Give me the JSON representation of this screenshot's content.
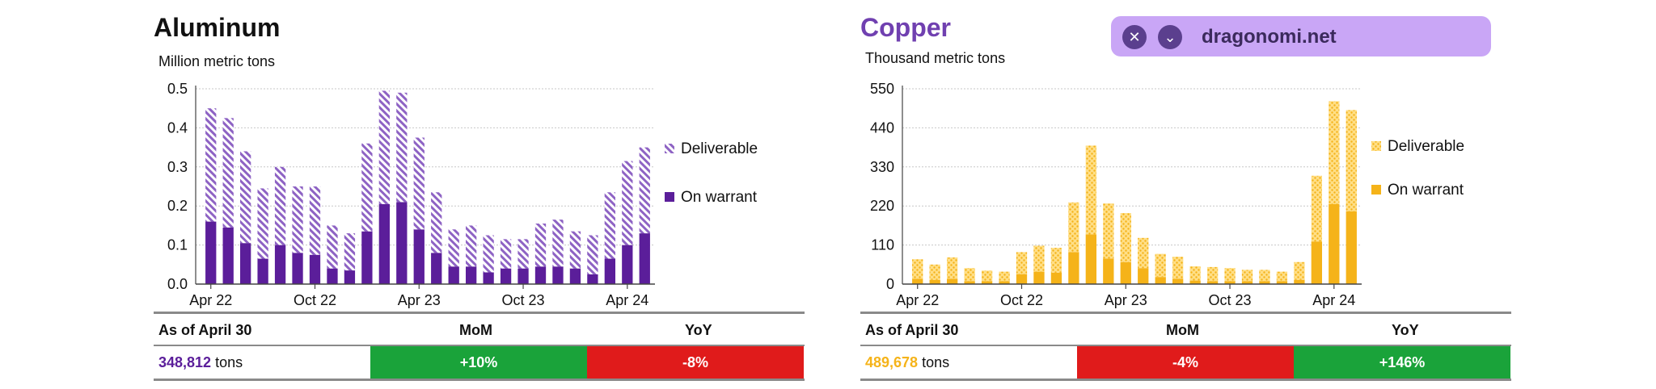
{
  "colors": {
    "aluminum": "#5b1e9a",
    "aluminum_hatch": "#8e63c4",
    "copper": "#f5b319",
    "copper_light": "#ffdf87",
    "positive": "#1aa33a",
    "negative": "#e01b1b",
    "grid": "#c7c7c7",
    "divider": "#8a8a8a"
  },
  "popup": {
    "site": "dragonomi.net",
    "close_icon": "close-icon",
    "expand_icon": "chevron-down-icon"
  },
  "aluminum": {
    "title": "Aluminum",
    "unit": "Million metric tons",
    "stats": {
      "as_of": "As of April 30",
      "mom_header": "MoM",
      "yoy_header": "YoY",
      "value": "348,812",
      "unit": "tons",
      "mom": "+10%",
      "yoy": "-8%"
    }
  },
  "copper": {
    "title": "Copper",
    "unit": "Thousand metric tons",
    "stats": {
      "as_of": "As of April 30",
      "mom_header": "MoM",
      "yoy_header": "YoY",
      "value": "489,678",
      "unit": "tons",
      "mom": "-4%",
      "yoy": "+146%"
    }
  },
  "chart_data": [
    {
      "type": "bar",
      "stacked": true,
      "title": "Aluminum",
      "ylabel": "Million metric tons",
      "ylim": [
        0,
        0.5
      ],
      "yticks": [
        "0.0",
        "0.1",
        "0.2",
        "0.3",
        "0.4",
        "0.5"
      ],
      "categories": [
        "Apr 22",
        "May 22",
        "Jun 22",
        "Jul 22",
        "Aug 22",
        "Sep 22",
        "Oct 22",
        "Nov 22",
        "Dec 22",
        "Jan 23",
        "Feb 23",
        "Mar 23",
        "Apr 23",
        "May 23",
        "Jun 23",
        "Jul 23",
        "Aug 23",
        "Sep 23",
        "Oct 23",
        "Nov 23",
        "Dec 23",
        "Jan 24",
        "Feb 24",
        "Mar 24",
        "Apr 24",
        "May 24"
      ],
      "xtick_labels": [
        {
          "index": 0,
          "label": "Apr 22"
        },
        {
          "index": 6,
          "label": "Oct 22"
        },
        {
          "index": 12,
          "label": "Apr 23"
        },
        {
          "index": 18,
          "label": "Oct 23"
        },
        {
          "index": 24,
          "label": "Apr 24"
        }
      ],
      "series": [
        {
          "name": "On warrant",
          "values": [
            0.16,
            0.145,
            0.105,
            0.065,
            0.1,
            0.08,
            0.075,
            0.04,
            0.035,
            0.135,
            0.205,
            0.21,
            0.14,
            0.08,
            0.045,
            0.045,
            0.03,
            0.04,
            0.04,
            0.045,
            0.045,
            0.04,
            0.025,
            0.065,
            0.1,
            0.13
          ]
        },
        {
          "name": "Deliverable",
          "values": [
            0.29,
            0.28,
            0.235,
            0.18,
            0.2,
            0.17,
            0.175,
            0.11,
            0.095,
            0.225,
            0.29,
            0.28,
            0.235,
            0.155,
            0.095,
            0.105,
            0.095,
            0.075,
            0.075,
            0.11,
            0.12,
            0.095,
            0.1,
            0.17,
            0.215,
            0.22
          ]
        }
      ],
      "legend": "right",
      "grid": true
    },
    {
      "type": "bar",
      "stacked": true,
      "title": "Copper",
      "ylabel": "Thousand metric tons",
      "ylim": [
        0,
        550
      ],
      "yticks": [
        "0",
        "110",
        "220",
        "330",
        "440",
        "550"
      ],
      "categories": [
        "Apr 22",
        "May 22",
        "Jun 22",
        "Jul 22",
        "Aug 22",
        "Sep 22",
        "Oct 22",
        "Nov 22",
        "Dec 22",
        "Jan 23",
        "Feb 23",
        "Mar 23",
        "Apr 23",
        "May 23",
        "Jun 23",
        "Jul 23",
        "Aug 23",
        "Sep 23",
        "Oct 23",
        "Nov 23",
        "Dec 23",
        "Jan 24",
        "Feb 24",
        "Mar 24",
        "Apr 24",
        "May 24"
      ],
      "xtick_labels": [
        {
          "index": 0,
          "label": "Apr 22"
        },
        {
          "index": 6,
          "label": "Oct 22"
        },
        {
          "index": 12,
          "label": "Apr 23"
        },
        {
          "index": 18,
          "label": "Oct 23"
        },
        {
          "index": 24,
          "label": "Apr 24"
        }
      ],
      "series": [
        {
          "name": "On warrant",
          "values": [
            15,
            12,
            15,
            8,
            8,
            8,
            28,
            35,
            32,
            90,
            140,
            72,
            62,
            45,
            20,
            15,
            10,
            8,
            8,
            8,
            8,
            8,
            12,
            120,
            225,
            205
          ]
        },
        {
          "name": "Deliverable",
          "values": [
            55,
            43,
            60,
            37,
            30,
            27,
            62,
            73,
            70,
            140,
            250,
            155,
            138,
            85,
            65,
            62,
            40,
            40,
            37,
            32,
            32,
            27,
            50,
            185,
            290,
            285
          ]
        }
      ],
      "legend": "right",
      "grid": true
    }
  ]
}
